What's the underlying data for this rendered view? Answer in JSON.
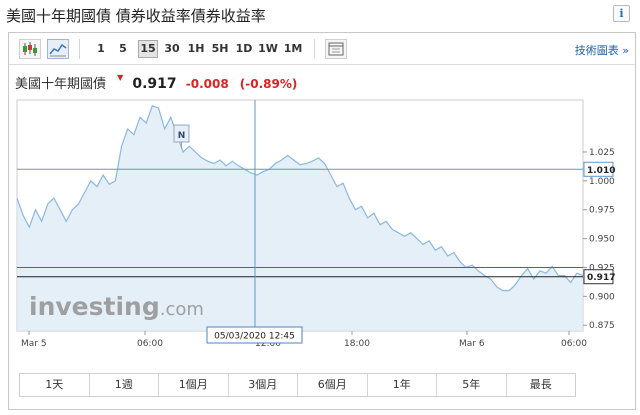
{
  "page_title": "美國十年期國債 債券收益率債券收益率",
  "info_icon": "info-icon",
  "toolbar": {
    "chart_types": [
      "candlestick-icon",
      "area-chart-icon"
    ],
    "intervals": [
      "1",
      "5",
      "15",
      "30",
      "1H",
      "5H",
      "1D",
      "1W",
      "1M"
    ],
    "active_interval": "15",
    "settings_icon": "chart-settings-icon",
    "technical_link": "技術圖表 »"
  },
  "quote": {
    "name": "美國十年期國債",
    "price": "0.917",
    "arrow": "▼",
    "change": "-0.008",
    "change_pct": "(-0.89%)"
  },
  "ranges": [
    "1天",
    "1週",
    "1個月",
    "3個月",
    "6個月",
    "1年",
    "5年",
    "最長"
  ],
  "colors": {
    "line": "#8ab8e0",
    "fill": "#dceaf6",
    "current_line": "#222222",
    "prev_close_line": "#cc3333",
    "crosshair": "#5a9ad0"
  },
  "chart_data": {
    "type": "area",
    "title": "",
    "xlabel": "",
    "ylabel": "",
    "ylim": [
      0.87,
      1.07
    ],
    "x_ticks": [
      "Mar 5",
      "06:00",
      "12:00",
      "18:00",
      "Mar 6",
      "06:00"
    ],
    "y_ticks": [
      "1.025",
      "1.000",
      "0.975",
      "0.950",
      "0.925",
      "0.900",
      "0.875"
    ],
    "values": [
      0.985,
      0.97,
      0.96,
      0.975,
      0.965,
      0.98,
      0.985,
      0.975,
      0.965,
      0.975,
      0.98,
      0.99,
      1.0,
      0.995,
      1.005,
      0.997,
      1.0,
      1.03,
      1.045,
      1.04,
      1.055,
      1.05,
      1.065,
      1.063,
      1.045,
      1.055,
      1.04,
      1.025,
      1.03,
      1.025,
      1.02,
      1.017,
      1.015,
      1.018,
      1.013,
      1.017,
      1.013,
      1.01,
      1.007,
      1.005,
      1.008,
      1.01,
      1.015,
      1.018,
      1.022,
      1.018,
      1.014,
      1.015,
      1.017,
      1.02,
      1.015,
      1.005,
      0.995,
      0.998,
      0.985,
      0.975,
      0.978,
      0.968,
      0.972,
      0.962,
      0.965,
      0.958,
      0.955,
      0.952,
      0.955,
      0.95,
      0.945,
      0.948,
      0.94,
      0.943,
      0.935,
      0.938,
      0.93,
      0.925,
      0.927,
      0.922,
      0.918,
      0.915,
      0.908,
      0.905,
      0.905,
      0.91,
      0.918,
      0.924,
      0.915,
      0.922,
      0.92,
      0.926,
      0.918,
      0.918,
      0.912,
      0.92,
      0.918
    ],
    "current_value": 0.917,
    "current_label": "0.917",
    "level_value": 1.01,
    "level_label": "1.010",
    "prev_close": 0.925,
    "annotation": "N",
    "crosshair_label": "05/03/2020 12:45",
    "grid": false
  },
  "watermark": {
    "brand": "investing",
    "suffix": ".com"
  }
}
